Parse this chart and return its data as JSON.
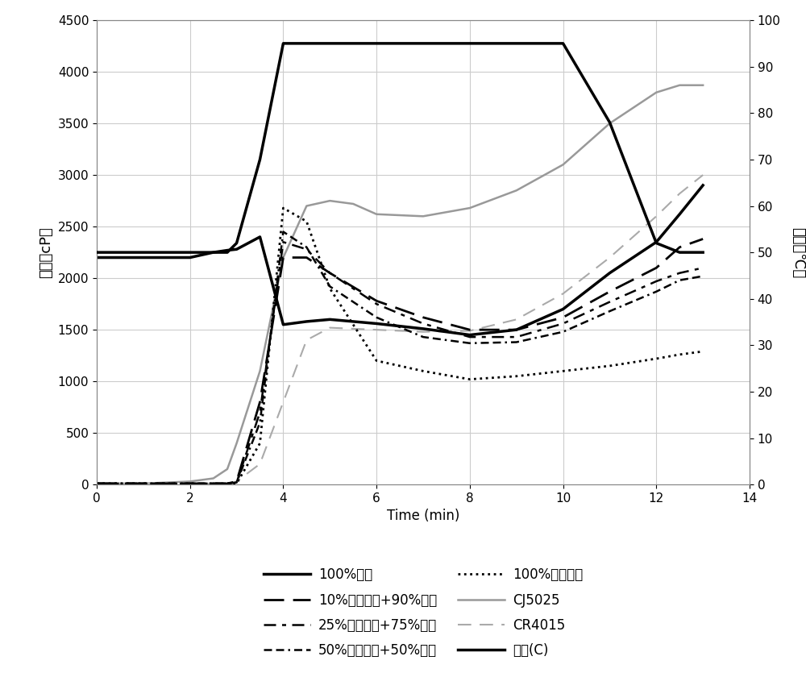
{
  "xlabel": "Time (min)",
  "ylabel_left": "粘度（cP）",
  "ylabel_right": "温度（℃）",
  "xlim": [
    0,
    14
  ],
  "ylim_left": [
    0,
    4500
  ],
  "ylim_right": [
    0,
    100
  ],
  "xticks": [
    0,
    2,
    4,
    6,
    8,
    10,
    12,
    14
  ],
  "yticks_left": [
    0,
    500,
    1000,
    1500,
    2000,
    2500,
    3000,
    3500,
    4000,
    4500
  ],
  "yticks_right": [
    0,
    10,
    20,
    30,
    40,
    50,
    60,
    70,
    80,
    90,
    100
  ],
  "temperature": {
    "x": [
      0,
      0.3,
      1.0,
      2.0,
      2.5,
      2.8,
      3.0,
      3.5,
      4.0,
      4.5,
      5.0,
      5.5,
      6.0,
      7.0,
      7.5,
      9.0,
      10.0,
      11.0,
      12.0,
      12.5,
      13.0
    ],
    "y": [
      50,
      50,
      50,
      50,
      50,
      50,
      52,
      70,
      95,
      95,
      95,
      95,
      95,
      95,
      95,
      95,
      95,
      78,
      52,
      50,
      50
    ]
  },
  "buckwheat_100": {
    "x": [
      0,
      0.3,
      1.0,
      2.0,
      2.5,
      2.8,
      3.0,
      3.5,
      4.0,
      4.5,
      5.0,
      6.0,
      7.0,
      8.0,
      9.0,
      10.0,
      11.0,
      12.0,
      12.5,
      13.0
    ],
    "y": [
      2200,
      2200,
      2200,
      2200,
      2250,
      2270,
      2280,
      2400,
      1550,
      1580,
      1600,
      1560,
      1510,
      1450,
      1500,
      1700,
      2050,
      2350,
      2620,
      2900
    ]
  },
  "waxy10_buckwheat90": {
    "x": [
      0,
      0.3,
      1.0,
      2.0,
      2.5,
      2.8,
      3.0,
      3.5,
      4.0,
      4.5,
      5.0,
      6.0,
      7.0,
      8.0,
      9.0,
      10.0,
      11.0,
      12.0,
      12.5,
      13.0
    ],
    "y": [
      10,
      10,
      10,
      10,
      10,
      10,
      30,
      800,
      2200,
      2200,
      2050,
      1780,
      1620,
      1500,
      1500,
      1620,
      1870,
      2100,
      2300,
      2380
    ]
  },
  "waxy25_buckwheat75": {
    "x": [
      0,
      0.3,
      1.0,
      2.0,
      2.5,
      2.8,
      3.0,
      3.5,
      4.0,
      4.5,
      5.0,
      6.0,
      7.0,
      8.0,
      9.0,
      10.0,
      11.0,
      12.0,
      12.5,
      13.0
    ],
    "y": [
      10,
      10,
      10,
      10,
      10,
      10,
      20,
      700,
      2350,
      2280,
      2050,
      1750,
      1560,
      1430,
      1430,
      1560,
      1770,
      1970,
      2050,
      2100
    ]
  },
  "waxy50_buckwheat50": {
    "x": [
      0,
      0.3,
      1.0,
      2.0,
      2.5,
      2.8,
      3.0,
      3.5,
      4.0,
      4.5,
      5.0,
      6.0,
      7.0,
      8.0,
      9.0,
      10.0,
      11.0,
      12.0,
      12.5,
      13.0
    ],
    "y": [
      10,
      10,
      10,
      10,
      10,
      10,
      20,
      600,
      2450,
      2300,
      1920,
      1620,
      1430,
      1370,
      1380,
      1480,
      1680,
      1870,
      1980,
      2020
    ]
  },
  "waxy100": {
    "x": [
      0,
      0.3,
      1.0,
      2.0,
      2.5,
      2.8,
      3.0,
      3.5,
      4.0,
      4.5,
      5.0,
      6.0,
      7.0,
      8.0,
      9.0,
      10.0,
      11.0,
      12.0,
      12.5,
      13.0
    ],
    "y": [
      10,
      10,
      10,
      10,
      10,
      10,
      10,
      400,
      2680,
      2550,
      1900,
      1200,
      1100,
      1020,
      1050,
      1100,
      1150,
      1220,
      1260,
      1290
    ]
  },
  "CJ5025": {
    "x": [
      0,
      0.3,
      1.0,
      2.0,
      2.5,
      2.8,
      3.0,
      3.5,
      4.0,
      4.5,
      5.0,
      5.5,
      6.0,
      7.0,
      8.0,
      9.0,
      10.0,
      11.0,
      12.0,
      12.5,
      13.0
    ],
    "y": [
      10,
      10,
      10,
      30,
      60,
      150,
      400,
      1100,
      2200,
      2700,
      2750,
      2720,
      2620,
      2600,
      2680,
      2850,
      3100,
      3500,
      3800,
      3870,
      3870
    ]
  },
  "CR4015": {
    "x": [
      0,
      0.3,
      1.0,
      2.0,
      2.5,
      2.8,
      3.0,
      3.5,
      4.0,
      4.5,
      5.0,
      6.0,
      7.0,
      8.0,
      9.0,
      10.0,
      11.0,
      12.0,
      12.5,
      13.0
    ],
    "y": [
      10,
      10,
      10,
      10,
      10,
      10,
      30,
      200,
      800,
      1400,
      1520,
      1500,
      1480,
      1490,
      1600,
      1850,
      2200,
      2600,
      2820,
      3000
    ]
  },
  "legend_items": [
    {
      "label": "100%药麦",
      "color": "#000000",
      "ls": "solid",
      "lw": 2.5,
      "dashes": null
    },
    {
      "label": "10%蜡质玉米+90%药麦",
      "color": "#000000",
      "ls": "dashed",
      "lw": 2.0,
      "dashes": [
        9,
        4
      ]
    },
    {
      "label": "25%蜡质玉米+75%药麦",
      "color": "#000000",
      "ls": "dashed",
      "lw": 1.8,
      "dashes": [
        6,
        3,
        2,
        3
      ]
    },
    {
      "label": "50%蜡质玉米+50%药麦",
      "color": "#000000",
      "ls": "dashed",
      "lw": 1.8,
      "dashes": [
        4,
        2,
        4,
        2,
        1,
        2
      ]
    },
    {
      "label": "100%蜡质玉米",
      "color": "#000000",
      "ls": "dotted",
      "lw": 2.0,
      "dashes": null
    },
    {
      "label": "CJ5025",
      "color": "#999999",
      "ls": "solid",
      "lw": 1.8,
      "dashes": null
    },
    {
      "label": "CR4015",
      "color": "#aaaaaa",
      "ls": "dashed",
      "lw": 1.5,
      "dashes": [
        8,
        5
      ]
    },
    {
      "label": "温度(C)",
      "color": "#000000",
      "ls": "solid",
      "lw": 2.5,
      "dashes": null
    }
  ],
  "background_color": "#ffffff",
  "grid_color": "#cccccc"
}
